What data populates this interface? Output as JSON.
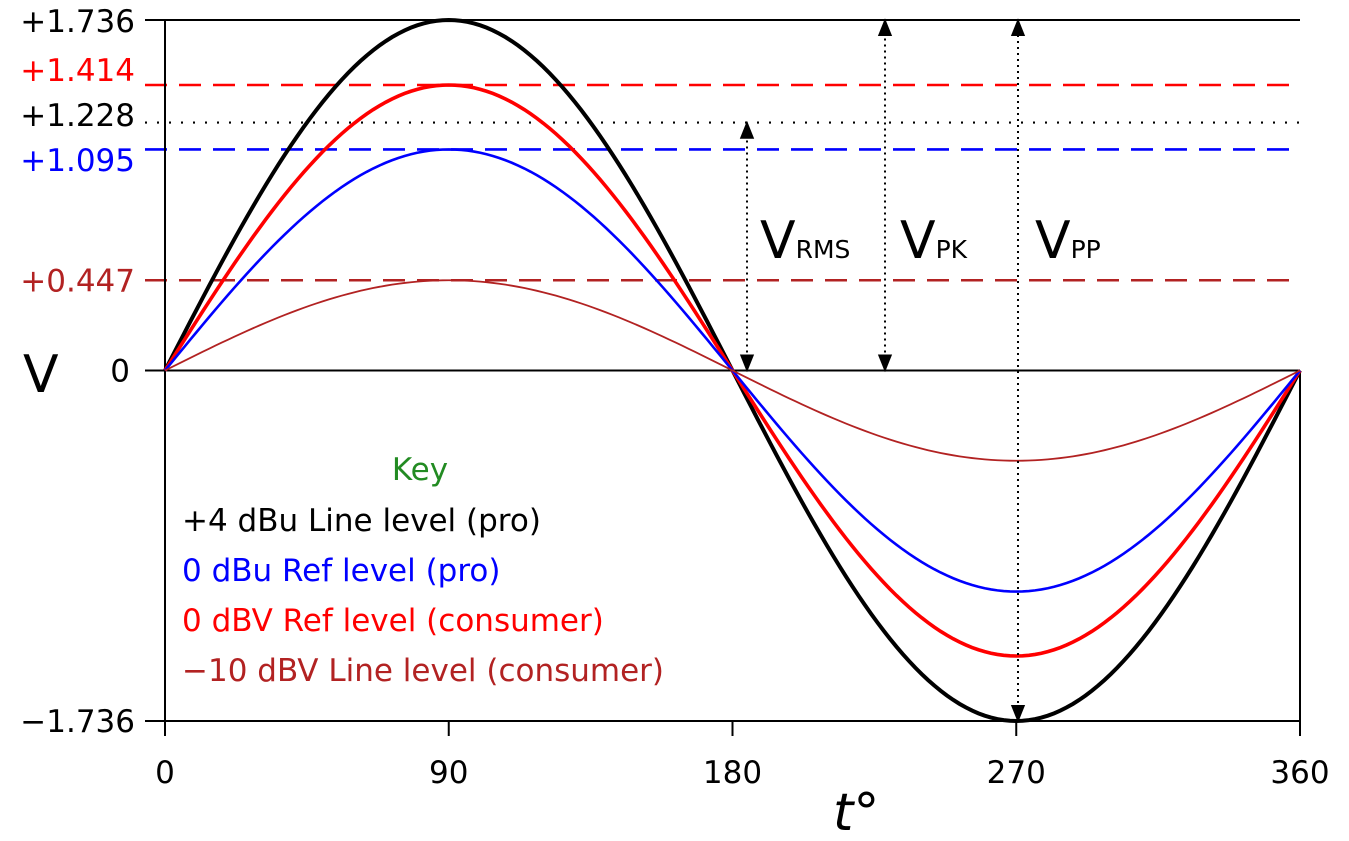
{
  "chart_data": {
    "type": "line",
    "xlabel": "t°",
    "ylabel": "V",
    "xlim": [
      0,
      360
    ],
    "ylim": [
      -1.736,
      1.736
    ],
    "x_ticks": [
      "0",
      "90",
      "180",
      "270",
      "360"
    ],
    "y_ticks": [
      {
        "label": "+1.736",
        "value": 1.736,
        "color": "#000000"
      },
      {
        "label": "+1.414",
        "value": 1.414,
        "color": "#ff0000"
      },
      {
        "label": "+1.228",
        "value": 1.228,
        "color": "#000000"
      },
      {
        "label": "+1.095",
        "value": 1.095,
        "color": "#0000ff"
      },
      {
        "label": "+0.447",
        "value": 0.447,
        "color": "#b22222"
      },
      {
        "label": "0",
        "value": 0,
        "color": "#000000"
      },
      {
        "label": "−1.736",
        "value": -1.736,
        "color": "#000000"
      }
    ],
    "series": [
      {
        "name": "+4 dBu Line level (pro)",
        "amplitude": 1.736,
        "color": "#000000"
      },
      {
        "name": "0 dBu Ref level (pro)",
        "amplitude": 1.095,
        "color": "#0000ff"
      },
      {
        "name": "0 dBV Ref level (consumer)",
        "amplitude": 1.414,
        "color": "#ff0000"
      },
      {
        "name": "−10 dBV Line level (consumer)",
        "amplitude": 0.447,
        "color": "#b22222"
      }
    ],
    "reference_lines": [
      {
        "value": 1.414,
        "style": "dashed",
        "color": "#ff0000"
      },
      {
        "value": 1.228,
        "style": "dotted",
        "color": "#000000"
      },
      {
        "value": 1.095,
        "style": "dashed",
        "color": "#0000ff"
      },
      {
        "value": 0.447,
        "style": "dashed",
        "color": "#b22222"
      }
    ],
    "annotations": [
      {
        "main": "V",
        "sub": "RMS",
        "x": 180,
        "from": 0,
        "to": 1.228
      },
      {
        "main": "V",
        "sub": "PK",
        "x": 225,
        "from": 0,
        "to": 1.736
      },
      {
        "main": "V",
        "sub": "PP",
        "x": 270,
        "from": -1.736,
        "to": 1.736
      }
    ],
    "legend": {
      "title": "Key",
      "title_color": "#228b22",
      "placement": "lower-left"
    },
    "grid": false
  }
}
